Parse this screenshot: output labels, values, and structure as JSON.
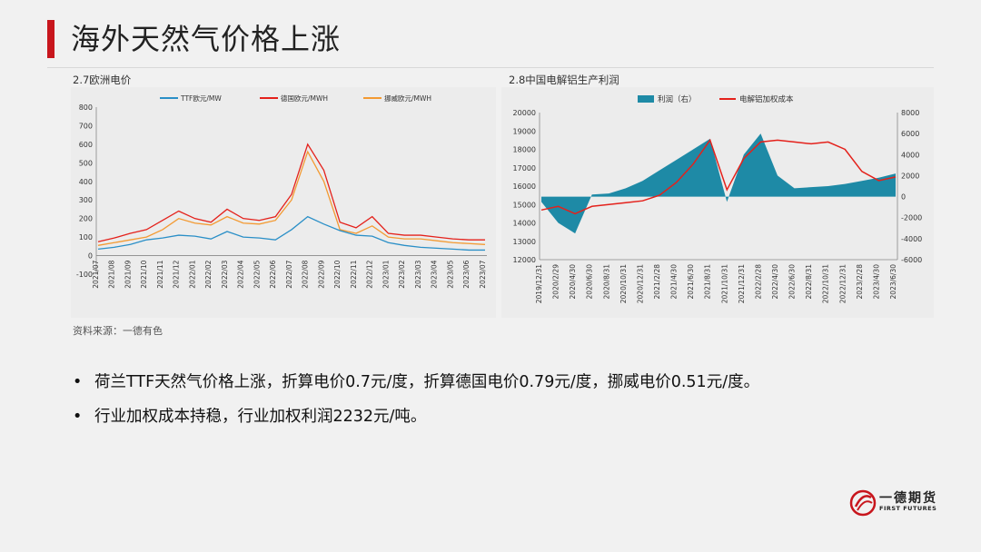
{
  "header": {
    "title": "海外天然气价格上涨",
    "accent_color": "#c8161d"
  },
  "chart_data": [
    {
      "type": "line",
      "caption": "2.7欧洲电价",
      "legend": [
        "TTF欧元/MW",
        "德国欧元/MWH",
        "挪威欧元/MWH"
      ],
      "colors": [
        "#2a8fc7",
        "#e4211b",
        "#f39a32"
      ],
      "ylim": [
        -100,
        800
      ],
      "yticks": [
        "800",
        "700",
        "600",
        "500",
        "400",
        "300",
        "200",
        "100",
        "0",
        "-100"
      ],
      "xticks": [
        "2021/07",
        "2021/08",
        "2021/09",
        "2021/10",
        "2021/11",
        "2021/12",
        "2022/01",
        "2022/02",
        "2022/03",
        "2022/04",
        "2022/05",
        "2022/06",
        "2022/07",
        "2022/08",
        "2022/09",
        "2022/10",
        "2022/11",
        "2022/12",
        "2023/01",
        "2023/02",
        "2023/03",
        "2023/04",
        "2023/05",
        "2023/06",
        "2023/07"
      ],
      "series": [
        {
          "name": "TTF欧元/MW",
          "values": [
            35,
            45,
            60,
            85,
            95,
            110,
            105,
            90,
            130,
            100,
            95,
            85,
            140,
            210,
            170,
            135,
            110,
            105,
            70,
            55,
            45,
            40,
            35,
            30,
            30
          ]
        },
        {
          "name": "德国欧元/MWH",
          "values": [
            75,
            95,
            120,
            140,
            190,
            240,
            200,
            180,
            250,
            200,
            190,
            210,
            330,
            600,
            460,
            180,
            150,
            210,
            120,
            110,
            110,
            100,
            90,
            85,
            85
          ]
        },
        {
          "name": "挪威欧元/MWH",
          "values": [
            55,
            70,
            85,
            100,
            140,
            200,
            175,
            165,
            210,
            175,
            170,
            190,
            300,
            560,
            400,
            140,
            120,
            160,
            100,
            90,
            90,
            80,
            70,
            65,
            60
          ]
        }
      ]
    },
    {
      "type": "bar+line",
      "caption": "2.8中国电解铝生产利润",
      "legend": [
        "利润（右）",
        "电解铝加权成本"
      ],
      "colors": [
        "#1e8aa6",
        "#e4211b"
      ],
      "ylim_left": [
        12000,
        20000
      ],
      "ylim_right": [
        -6000,
        8000
      ],
      "yticks_left": [
        "20000",
        "19000",
        "18000",
        "17000",
        "16000",
        "15000",
        "14000",
        "13000",
        "12000"
      ],
      "yticks_right": [
        "8000",
        "6000",
        "4000",
        "2000",
        "0",
        "-2000",
        "-4000",
        "-6000"
      ],
      "xticks": [
        "2019/12/31",
        "2020/2/29",
        "2020/4/30",
        "2020/6/30",
        "2020/8/31",
        "2020/10/31",
        "2020/12/31",
        "2021/2/28",
        "2021/4/30",
        "2021/6/30",
        "2021/8/31",
        "2021/10/31",
        "2021/12/31",
        "2022/2/28",
        "2022/4/30",
        "2022/6/30",
        "2022/8/31",
        "2022/10/31",
        "2022/12/31",
        "2023/2/28",
        "2023/4/30",
        "2023/6/30"
      ],
      "x": [
        0,
        1,
        2,
        3,
        4,
        5,
        6,
        7,
        8,
        9,
        10,
        11,
        12,
        13,
        14,
        15,
        16,
        17,
        18,
        19,
        20,
        21
      ],
      "profit": [
        -500,
        -2500,
        -3500,
        200,
        300,
        800,
        1500,
        2500,
        3500,
        4500,
        5500,
        -500,
        4000,
        6000,
        2000,
        800,
        900,
        1000,
        1200,
        1500,
        1800,
        2200
      ],
      "cost": [
        14700,
        14900,
        14500,
        14900,
        15000,
        15100,
        15200,
        15500,
        16200,
        17200,
        18500,
        15800,
        17500,
        18400,
        18500,
        18400,
        18300,
        18400,
        18000,
        16800,
        16300,
        16500
      ]
    }
  ],
  "source": "资料来源：一德有色",
  "bullets": [
    "荷兰TTF天然气价格上涨，折算电价0.7元/度，折算德国电价0.79元/度，挪威电价0.51元/度。",
    "行业加权成本持稳，行业加权利润2232元/吨。"
  ],
  "bullet_marker": "•",
  "logo": {
    "cn": "一德期货",
    "en": "FIRST FUTURES"
  }
}
